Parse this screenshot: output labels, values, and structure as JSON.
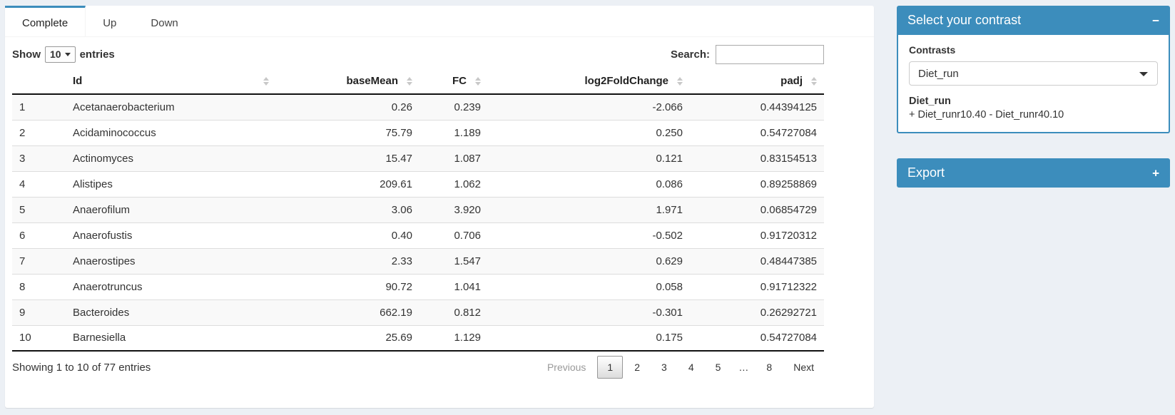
{
  "colors": {
    "accent": "#3c8dbc",
    "page_bg": "#ecf0f5",
    "stripe": "#f9f9f9"
  },
  "tabs": [
    {
      "label": "Complete",
      "active": true
    },
    {
      "label": "Up",
      "active": false
    },
    {
      "label": "Down",
      "active": false
    }
  ],
  "toolbar": {
    "show_label": "Show",
    "page_length": "10",
    "entries_label": "entries",
    "search_label": "Search:",
    "search_value": ""
  },
  "table": {
    "columns": [
      {
        "label": "",
        "align": "left",
        "sortable": false,
        "key": "num"
      },
      {
        "label": "Id",
        "align": "left",
        "sortable": true,
        "key": "id"
      },
      {
        "label": "baseMean",
        "align": "right",
        "sortable": true,
        "key": "baseMean"
      },
      {
        "label": "FC",
        "align": "right",
        "sortable": true,
        "key": "fc"
      },
      {
        "label": "log2FoldChange",
        "align": "right",
        "sortable": true,
        "key": "log2FoldChange"
      },
      {
        "label": "padj",
        "align": "right",
        "sortable": true,
        "key": "padj"
      }
    ],
    "rows": [
      {
        "num": "1",
        "id": "Acetanaerobacterium",
        "baseMean": "0.26",
        "fc": "0.239",
        "log2FoldChange": "-2.066",
        "padj": "0.44394125"
      },
      {
        "num": "2",
        "id": "Acidaminococcus",
        "baseMean": "75.79",
        "fc": "1.189",
        "log2FoldChange": "0.250",
        "padj": "0.54727084"
      },
      {
        "num": "3",
        "id": "Actinomyces",
        "baseMean": "15.47",
        "fc": "1.087",
        "log2FoldChange": "0.121",
        "padj": "0.83154513"
      },
      {
        "num": "4",
        "id": "Alistipes",
        "baseMean": "209.61",
        "fc": "1.062",
        "log2FoldChange": "0.086",
        "padj": "0.89258869"
      },
      {
        "num": "5",
        "id": "Anaerofilum",
        "baseMean": "3.06",
        "fc": "3.920",
        "log2FoldChange": "1.971",
        "padj": "0.06854729"
      },
      {
        "num": "6",
        "id": "Anaerofustis",
        "baseMean": "0.40",
        "fc": "0.706",
        "log2FoldChange": "-0.502",
        "padj": "0.91720312"
      },
      {
        "num": "7",
        "id": "Anaerostipes",
        "baseMean": "2.33",
        "fc": "1.547",
        "log2FoldChange": "0.629",
        "padj": "0.48447385"
      },
      {
        "num": "8",
        "id": "Anaerotruncus",
        "baseMean": "90.72",
        "fc": "1.041",
        "log2FoldChange": "0.058",
        "padj": "0.91712322"
      },
      {
        "num": "9",
        "id": "Bacteroides",
        "baseMean": "662.19",
        "fc": "0.812",
        "log2FoldChange": "-0.301",
        "padj": "0.26292721"
      },
      {
        "num": "10",
        "id": "Barnesiella",
        "baseMean": "25.69",
        "fc": "1.129",
        "log2FoldChange": "0.175",
        "padj": "0.54727084"
      }
    ]
  },
  "footer": {
    "info": "Showing 1 to 10 of 77 entries"
  },
  "pagination": {
    "buttons": [
      {
        "label": "Previous",
        "state": "disabled"
      },
      {
        "label": "1",
        "state": "current"
      },
      {
        "label": "2",
        "state": "normal"
      },
      {
        "label": "3",
        "state": "normal"
      },
      {
        "label": "4",
        "state": "normal"
      },
      {
        "label": "5",
        "state": "normal"
      },
      {
        "label": "…",
        "state": "ellipsis"
      },
      {
        "label": "8",
        "state": "normal"
      },
      {
        "label": "Next",
        "state": "normal"
      }
    ]
  },
  "contrast_box": {
    "title": "Select your contrast",
    "collapse_icon": "−",
    "contrasts_label": "Contrasts",
    "selected_contrast": "Diet_run",
    "contrast_name": "Diet_run",
    "contrast_formula": "+ Diet_runr10.40 - Diet_runr40.10"
  },
  "export_box": {
    "title": "Export",
    "collapse_icon": "+"
  }
}
